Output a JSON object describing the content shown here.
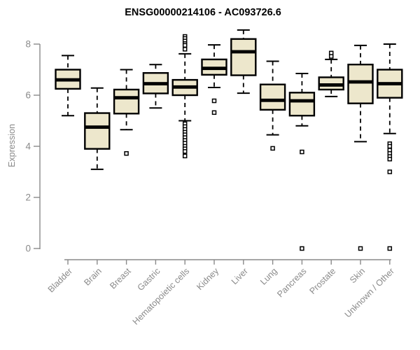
{
  "chart_data": {
    "type": "boxplot",
    "title": "ENSG00000214106 - AC093726.6",
    "ylabel": "Expression",
    "xlabel": "",
    "yticks": [
      0,
      2,
      4,
      6,
      8
    ],
    "ylim": [
      0,
      8.6
    ],
    "grid": false,
    "legend": "none",
    "categories": [
      "Bladder",
      "Brain",
      "Breast",
      "Gastric",
      "Hematopoietic cells",
      "Kidney",
      "Liver",
      "Lung",
      "Pancreas",
      "Prostate",
      "Skin",
      "Unknown / Other"
    ],
    "series": [
      {
        "name": "Bladder",
        "whisker_low": 5.2,
        "q1": 6.25,
        "median": 6.6,
        "q3": 7.0,
        "whisker_high": 7.55,
        "outliers": []
      },
      {
        "name": "Brain",
        "whisker_low": 3.1,
        "q1": 3.9,
        "median": 4.75,
        "q3": 5.3,
        "whisker_high": 6.28,
        "outliers": []
      },
      {
        "name": "Breast",
        "whisker_low": 4.65,
        "q1": 5.28,
        "median": 5.9,
        "q3": 6.22,
        "whisker_high": 7.0,
        "outliers": [
          3.72
        ]
      },
      {
        "name": "Gastric",
        "whisker_low": 5.5,
        "q1": 6.07,
        "median": 6.45,
        "q3": 6.87,
        "whisker_high": 7.2,
        "outliers": []
      },
      {
        "name": "Hematopoietic cells",
        "whisker_low": 5.0,
        "q1": 6.0,
        "median": 6.32,
        "q3": 6.6,
        "whisker_high": 7.62,
        "outliers": [
          8.3,
          8.22,
          8.12,
          8.02,
          7.95,
          7.8,
          4.88,
          4.77,
          4.66,
          4.55,
          4.45,
          4.34,
          4.23,
          4.12,
          4.0,
          3.9,
          3.8,
          3.62
        ]
      },
      {
        "name": "Kidney",
        "whisker_low": 6.3,
        "q1": 6.8,
        "median": 7.05,
        "q3": 7.4,
        "whisker_high": 7.97,
        "outliers": [
          5.78,
          5.32
        ]
      },
      {
        "name": "Liver",
        "whisker_low": 6.08,
        "q1": 6.78,
        "median": 7.7,
        "q3": 8.2,
        "whisker_high": 8.55,
        "outliers": []
      },
      {
        "name": "Lung",
        "whisker_low": 4.45,
        "q1": 5.43,
        "median": 5.8,
        "q3": 6.42,
        "whisker_high": 7.33,
        "outliers": [
          3.92
        ]
      },
      {
        "name": "Pancreas",
        "whisker_low": 4.8,
        "q1": 5.2,
        "median": 5.78,
        "q3": 6.1,
        "whisker_high": 6.85,
        "outliers": [
          3.78,
          0.0
        ]
      },
      {
        "name": "Prostate",
        "whisker_low": 5.95,
        "q1": 6.22,
        "median": 6.4,
        "q3": 6.7,
        "whisker_high": 7.4,
        "outliers": [
          7.65,
          7.52
        ]
      },
      {
        "name": "Skin",
        "whisker_low": 4.18,
        "q1": 5.68,
        "median": 6.52,
        "q3": 7.2,
        "whisker_high": 7.95,
        "outliers": [
          0.0
        ]
      },
      {
        "name": "Unknown / Other",
        "whisker_low": 4.5,
        "q1": 5.9,
        "median": 6.45,
        "q3": 7.0,
        "whisker_high": 8.0,
        "outliers": [
          4.1,
          4.0,
          3.85,
          3.72,
          3.6,
          3.5,
          3.0,
          0.0
        ]
      }
    ],
    "colors": {
      "box_fill": "#EDE7CC",
      "box_stroke": "#000000",
      "median": "#000000",
      "whisker": "#000000",
      "axis": "#8a8a8a",
      "tick_text": "#8a8a8a",
      "title_text": "#000000",
      "background": "#ffffff"
    }
  }
}
